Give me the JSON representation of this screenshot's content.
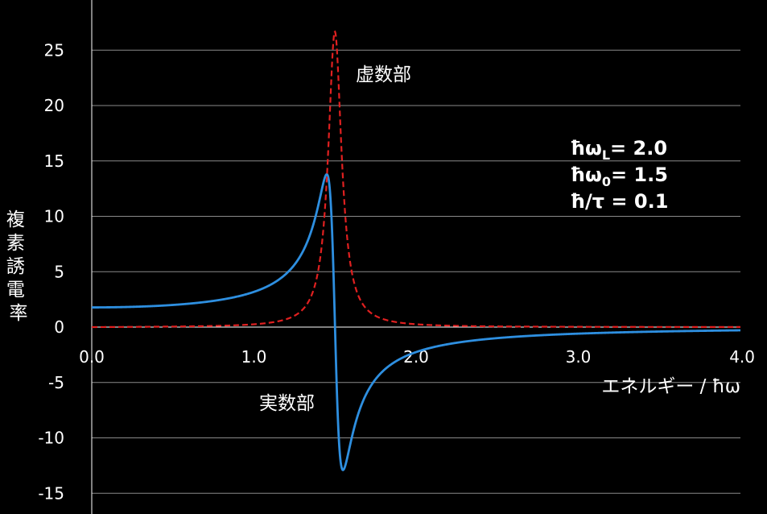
{
  "chart_data": {
    "type": "line",
    "title": "",
    "xlabel": "エネルギー / ħω",
    "ylabel": "複素誘電率",
    "xlim": [
      0.0,
      4.0
    ],
    "ylim": [
      -16,
      28
    ],
    "xticks": [
      "0.0",
      "1.0",
      "2.0",
      "3.0",
      "4.0"
    ],
    "yticks": [
      "-15",
      "-10",
      "-5",
      "0",
      "5",
      "10",
      "15",
      "20",
      "25"
    ],
    "ytick_values": [
      -15,
      -10,
      -5,
      0,
      5,
      10,
      15,
      20,
      25
    ],
    "xtick_values": [
      0,
      1,
      2,
      3,
      4
    ],
    "grid": "horizontal",
    "background": "#000000",
    "parameters": {
      "hbar_omega_L": 2.0,
      "hbar_omega_0": 1.5,
      "hbar_over_tau": 0.1
    },
    "parameter_text": {
      "line1_sub": "L",
      "line1_value": "= 2.0",
      "line2_sub": "0",
      "line2_value": "= 1.5",
      "line3_value": "/τ = 0.1"
    },
    "series": [
      {
        "name": "実数部",
        "color": "#2e8fe0",
        "style": "solid",
        "x": [
          0.0,
          0.5,
          1.0,
          1.2,
          1.3,
          1.4,
          1.45,
          1.5,
          1.55,
          1.6,
          1.7,
          1.8,
          2.0,
          2.5,
          3.0,
          3.5,
          4.0
        ],
        "y": [
          2.78,
          3.09,
          4.33,
          6.32,
          8.46,
          13.33,
          15.06,
          1.0,
          -12.27,
          -10.13,
          -4.3,
          -2.04,
          -0.55,
          0.1,
          0.35,
          0.5,
          0.63
        ]
      },
      {
        "name": "虚数部",
        "color": "#e02020",
        "style": "dashed",
        "x": [
          0.0,
          0.5,
          1.0,
          1.2,
          1.3,
          1.4,
          1.45,
          1.5,
          1.55,
          1.6,
          1.7,
          1.8,
          2.0,
          2.5,
          3.0,
          3.5,
          4.0
        ],
        "y": [
          0.0,
          0.02,
          0.16,
          0.48,
          1.04,
          3.57,
          9.05,
          26.67,
          12.1,
          4.11,
          1.05,
          0.45,
          0.14,
          0.03,
          0.01,
          0.01,
          0.0
        ]
      }
    ]
  }
}
